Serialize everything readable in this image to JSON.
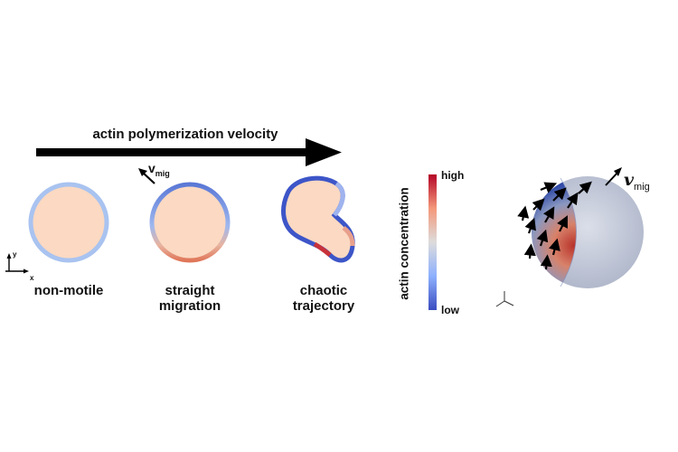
{
  "header": {
    "arrow_label": "actin polymerization velocity"
  },
  "cells": [
    {
      "label_line1": "non-motile",
      "label_line2": ""
    },
    {
      "label_line1": "straight",
      "label_line2": "migration"
    },
    {
      "label_line1": "chaotic",
      "label_line2": "trajectory"
    }
  ],
  "axes": {
    "x": "x",
    "y": "y"
  },
  "velocity": {
    "symbol": "v",
    "subscript": "mig"
  },
  "colorbar": {
    "title": "actin concentration",
    "high": "high",
    "low": "low"
  },
  "colors": {
    "low": "#3b4cc0",
    "mid": "#dcdcdc",
    "high": "#b40426",
    "cytoplasm": "#fbd9c2"
  }
}
